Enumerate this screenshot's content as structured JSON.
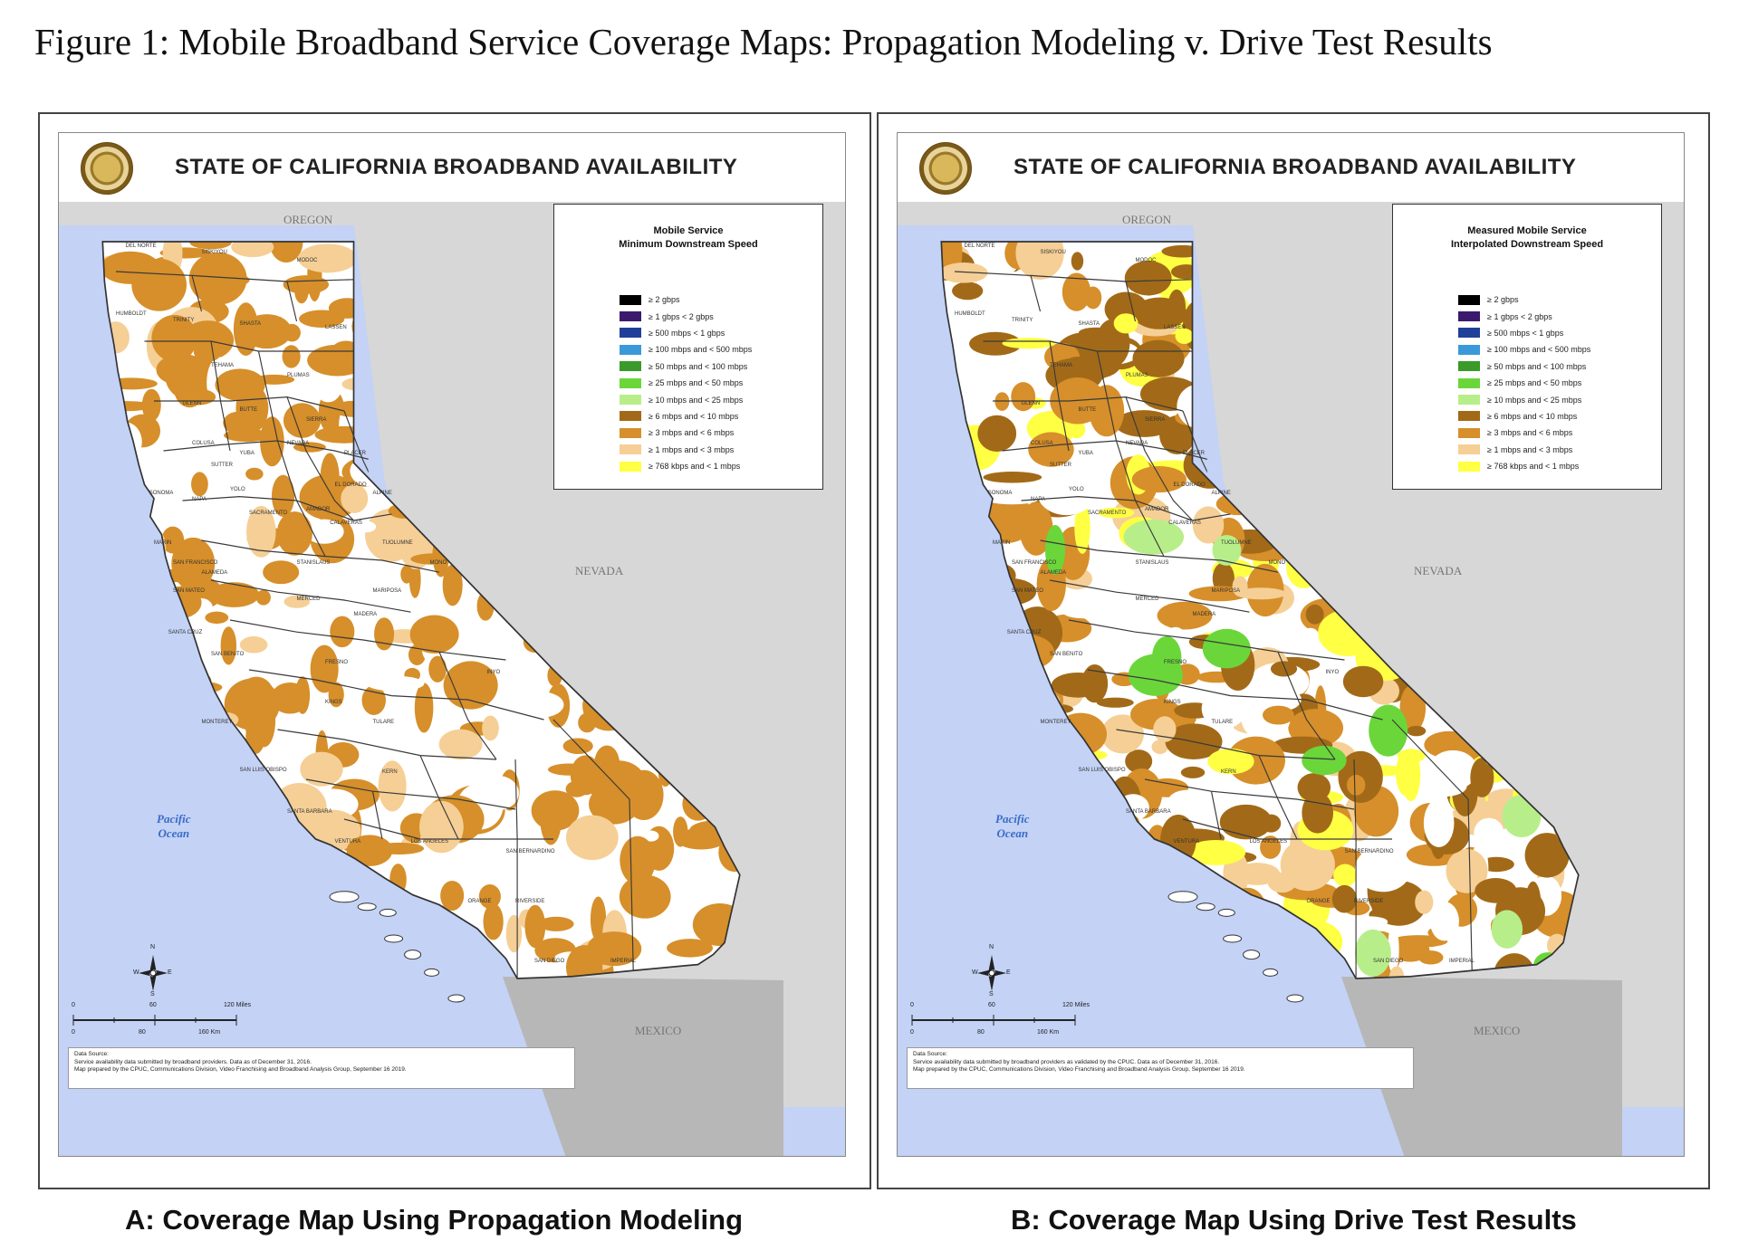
{
  "figure_title": "Figure 1: Mobile Broadband Service Coverage Maps: Propagation Modeling v. Drive Test Results",
  "panels": [
    {
      "map_title": "STATE OF CALIFORNIA BROADBAND AVAILABILITY",
      "legend_title_1": "Mobile Service",
      "legend_title_2": "Minimum Downstream Speed",
      "caption": "A: Coverage Map Using Propagation Modeling",
      "source_1": "Data Source:",
      "source_2": "Service availability data submitted by broadband providers. Data as of December 31, 2016.",
      "source_3": "Map prepared by the CPUC, Communications Division, Video Franchising and Broadband Analysis Group, September 16 2019."
    },
    {
      "map_title": "STATE OF CALIFORNIA BROADBAND AVAILABILITY",
      "legend_title_1": "Measured Mobile Service",
      "legend_title_2": "Interpolated Downstream Speed",
      "caption": "B: Coverage Map Using Drive Test Results",
      "source_1": "Data Source:",
      "source_2": "Service availability data submitted by broadband providers as validated by the CPUC. Data as of December 31, 2016.",
      "source_3": "Map prepared by the CPUC, Communications Division, Video Franchising and Broadband Analysis Group, September 16 2019."
    }
  ],
  "legend_items": [
    {
      "label": "≥ 2 gbps",
      "color": "#000000"
    },
    {
      "label": "≥ 1 gbps < 2 gbps",
      "color": "#3b1a6e"
    },
    {
      "label": "≥ 500 mbps < 1 gbps",
      "color": "#1f3f9a"
    },
    {
      "label": "≥ 100 mbps and < 500 mbps",
      "color": "#3a9ad9"
    },
    {
      "label": "≥ 50 mbps and < 100 mbps",
      "color": "#3a9a2a"
    },
    {
      "label": "≥ 25 mbps and < 50 mbps",
      "color": "#6ad63a"
    },
    {
      "label": "≥ 10 mbps and < 25 mbps",
      "color": "#b8ee8a"
    },
    {
      "label": "≥ 6 mbps and < 10 mbps",
      "color": "#a26a18"
    },
    {
      "label": "≥ 3 mbps and < 6 mbps",
      "color": "#d68f2a"
    },
    {
      "label": "≥ 1 mbps and < 3 mbps",
      "color": "#f5cf96"
    },
    {
      "label": "≥ 768 kbps and < 1 mbps",
      "color": "#ffff44"
    }
  ],
  "regions": {
    "oregon": "OREGON",
    "nevada": "NEVADA",
    "mexico": "MEXICO",
    "ocean_1": "Pacific",
    "ocean_2": "Ocean"
  },
  "counties": [
    "DEL NORTE",
    "SISKIYOU",
    "MODOC",
    "HUMBOLDT",
    "TRINITY",
    "SHASTA",
    "LASSEN",
    "TEHAMA",
    "PLUMAS",
    "GLENN",
    "BUTTE",
    "SIERRA",
    "NEVADA",
    "PLACER",
    "COLUSA",
    "YUBA",
    "SUTTER",
    "EL DORADO",
    "ALPINE",
    "SONOMA",
    "NAPA",
    "YOLO",
    "SACRAMENTO",
    "AMADOR",
    "CALAVERAS",
    "TUOLUMNE",
    "MONO",
    "MARIN",
    "SAN FRANCISCO",
    "SAN MATEO",
    "ALAMEDA",
    "STANISLAUS",
    "MARIPOSA",
    "MADERA",
    "MERCED",
    "SANTA CRUZ",
    "SAN BENITO",
    "FRESNO",
    "INYO",
    "MONTEREY",
    "KINGS",
    "TULARE",
    "SAN LUIS OBISPO",
    "KERN",
    "SANTA BARBARA",
    "VENTURA",
    "LOS ANGELES",
    "SAN BERNARDINO",
    "ORANGE",
    "RIVERSIDE",
    "SAN DIEGO",
    "IMPERIAL"
  ],
  "compass": {
    "n": "N",
    "s": "S",
    "e": "E",
    "w": "W"
  },
  "scale": {
    "t0": "0",
    "t60": "60",
    "t120": "120 Miles",
    "k0": "0",
    "k80": "80",
    "k160": "160 Km"
  }
}
